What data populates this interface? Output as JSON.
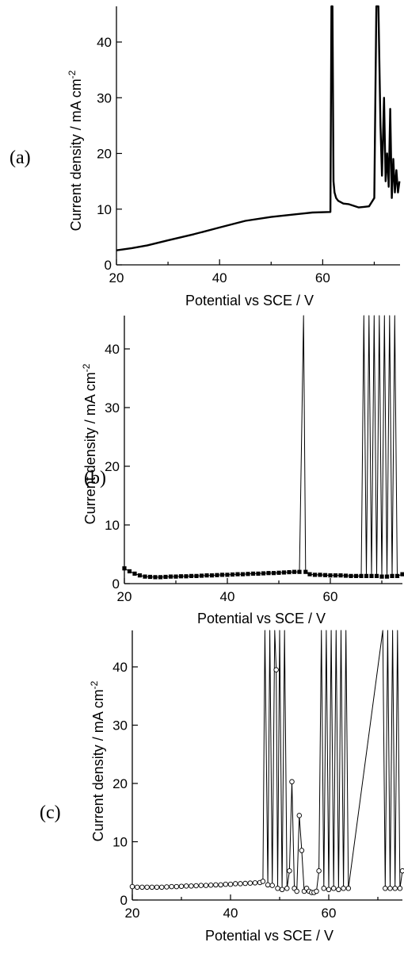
{
  "chart_data": [
    {
      "type": "line",
      "panel_label": "(a)",
      "xlabel": "Potential vs SCE / V",
      "ylabel_main": "Current density / mA cm",
      "ylabel_sup": "-2",
      "xlim": [
        20,
        75
      ],
      "ylim": [
        0,
        45
      ],
      "xticks": [
        20,
        40,
        60
      ],
      "yticks": [
        0,
        10,
        20,
        30,
        40
      ],
      "grid": false,
      "series": [
        {
          "style": "thick-line",
          "color": "#000000",
          "x": [
            20,
            23,
            26,
            30,
            35,
            40,
            45,
            50,
            55,
            58,
            61.5,
            61.7,
            61.9,
            62.1,
            62.3,
            62.6,
            63,
            64,
            65,
            66,
            67,
            68,
            69,
            70,
            70.4,
            70.8,
            71.2,
            71.5,
            71.9,
            72.2,
            72.5,
            72.8,
            73.1,
            73.4,
            73.7,
            74,
            74.3,
            74.6,
            74.9
          ],
          "y": [
            2.6,
            3,
            3.5,
            4.4,
            5.5,
            6.7,
            7.9,
            8.6,
            9.1,
            9.4,
            9.5,
            48,
            48,
            15,
            13,
            12,
            11.5,
            11,
            10.9,
            10.6,
            10.3,
            10.4,
            10.5,
            12,
            48,
            48,
            25,
            16,
            30,
            15,
            20,
            14,
            28,
            12,
            19,
            13,
            17,
            13,
            15
          ]
        }
      ]
    },
    {
      "type": "line",
      "panel_label": "(b)",
      "xlabel": "Potential vs SCE / V",
      "ylabel_main": "Current density / mA cm",
      "ylabel_sup": "-2",
      "xlim": [
        20,
        74
      ],
      "ylim": [
        0,
        45
      ],
      "xticks": [
        20,
        40,
        60
      ],
      "yticks": [
        0,
        10,
        20,
        30,
        40
      ],
      "grid": false,
      "series": [
        {
          "style": "filled-square-markers",
          "color": "#000000",
          "x": [
            20,
            21,
            22,
            23,
            24,
            25,
            26,
            27,
            28,
            29,
            30,
            31,
            32,
            33,
            34,
            35,
            36,
            37,
            38,
            39,
            40,
            41,
            42,
            43,
            44,
            45,
            46,
            47,
            48,
            49,
            50,
            51,
            52,
            53,
            54,
            54.8,
            55.2,
            56,
            57,
            58,
            59,
            60,
            61,
            62,
            63,
            64,
            65,
            66,
            66.5,
            67,
            67.5,
            68,
            68.5,
            69,
            69.5,
            70,
            70.5,
            71,
            71.5,
            72,
            72.5,
            73,
            74
          ],
          "y": [
            2.6,
            2.1,
            1.7,
            1.4,
            1.2,
            1.15,
            1.1,
            1.1,
            1.15,
            1.2,
            1.2,
            1.25,
            1.25,
            1.3,
            1.3,
            1.35,
            1.4,
            1.4,
            1.45,
            1.5,
            1.5,
            1.55,
            1.6,
            1.6,
            1.65,
            1.7,
            1.7,
            1.75,
            1.8,
            1.8,
            1.85,
            1.9,
            1.95,
            2,
            2,
            48,
            2,
            1.6,
            1.5,
            1.5,
            1.45,
            1.4,
            1.4,
            1.4,
            1.35,
            1.3,
            1.3,
            1.3,
            48,
            1.3,
            48,
            1.3,
            48,
            1.3,
            48,
            1.2,
            48,
            1.2,
            48,
            1.3,
            48,
            1.3,
            1.6
          ]
        }
      ]
    },
    {
      "type": "line",
      "panel_label": "(c)",
      "xlabel": "Potential vs SCE / V",
      "ylabel_main": "Current density / mA cm",
      "ylabel_sup": "-2",
      "xlim": [
        20,
        75
      ],
      "ylim": [
        0,
        45
      ],
      "xticks": [
        20,
        40,
        60
      ],
      "yticks": [
        0,
        10,
        20,
        30,
        40
      ],
      "grid": false,
      "series": [
        {
          "style": "open-circle-markers",
          "color": "#000000",
          "x": [
            20,
            21,
            22,
            23,
            24,
            25,
            26,
            27,
            28,
            29,
            30,
            31,
            32,
            33,
            34,
            35,
            36,
            37,
            38,
            39,
            40,
            41,
            42,
            43,
            44,
            45,
            46,
            46.6,
            47,
            47.6,
            48,
            48.5,
            49,
            49.3,
            49.6,
            50,
            50.5,
            51,
            51.5,
            52,
            52.5,
            53,
            53.5,
            54,
            54.5,
            55,
            55.5,
            56,
            56.5,
            57,
            57.5,
            58,
            58.5,
            59,
            59.5,
            60,
            60.5,
            61,
            61.5,
            62,
            62.5,
            63,
            63.5,
            64,
            71,
            71.5,
            72,
            72.5,
            73,
            73.5,
            74,
            74.5,
            75
          ],
          "y": [
            2.3,
            2.2,
            2.2,
            2.2,
            2.2,
            2.2,
            2.2,
            2.25,
            2.3,
            2.3,
            2.35,
            2.4,
            2.4,
            2.45,
            2.5,
            2.5,
            2.55,
            2.6,
            2.6,
            2.7,
            2.7,
            2.8,
            2.8,
            2.85,
            2.9,
            2.95,
            3,
            3.2,
            48,
            2.6,
            48,
            2.5,
            48,
            39.5,
            2,
            48,
            1.8,
            48,
            2,
            5,
            20.3,
            2,
            1.5,
            14.5,
            8.5,
            1.5,
            2,
            1.5,
            1.3,
            1.3,
            1.5,
            5,
            48,
            2,
            48,
            1.8,
            48,
            2,
            48,
            1.8,
            48,
            2,
            48,
            2,
            48,
            2,
            48,
            2,
            48,
            2,
            48,
            2,
            5
          ]
        }
      ]
    }
  ]
}
